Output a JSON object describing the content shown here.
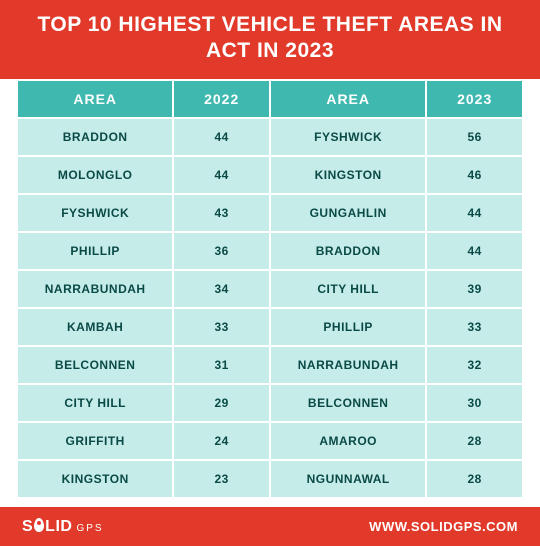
{
  "colors": {
    "red": "#e13a2b",
    "white": "#ffffff",
    "teal": "#3fb8b0",
    "cell": "#c5ece9",
    "text": "#0a4a46"
  },
  "title": "TOP 10 HIGHEST VEHICLE THEFT AREAS IN ACT IN 2023",
  "title_fontsize": 21,
  "table": {
    "columns": [
      "AREA",
      "2022",
      "AREA",
      "2023"
    ],
    "column_widths_pct": [
      31,
      19,
      31,
      19
    ],
    "header_bg": "#3fb8b0",
    "header_color": "#ffffff",
    "header_fontsize": 14,
    "cell_bg": "#c5ece9",
    "cell_color": "#0a4a46",
    "cell_fontsize": 12,
    "rows": [
      [
        "BRADDON",
        "44",
        "FYSHWICK",
        "56"
      ],
      [
        "MOLONGLO",
        "44",
        "KINGSTON",
        "46"
      ],
      [
        "FYSHWICK",
        "43",
        "GUNGAHLIN",
        "44"
      ],
      [
        "PHILLIP",
        "36",
        "BRADDON",
        "44"
      ],
      [
        "NARRABUNDAH",
        "34",
        "CITY HILL",
        "39"
      ],
      [
        "KAMBAH",
        "33",
        "PHILLIP",
        "33"
      ],
      [
        "BELCONNEN",
        "31",
        "NARRABUNDAH",
        "32"
      ],
      [
        "CITY HILL",
        "29",
        "BELCONNEN",
        "30"
      ],
      [
        "GRIFFITH",
        "24",
        "AMAROO",
        "28"
      ],
      [
        "KINGSTON",
        "23",
        "NGUNNAWAL",
        "28"
      ]
    ]
  },
  "footer": {
    "logo_left": "S",
    "logo_right": "LID",
    "logo_sub": "GPS",
    "url": "WWW.SOLIDGPS.COM",
    "bg": "#e13a2b",
    "color": "#ffffff"
  }
}
